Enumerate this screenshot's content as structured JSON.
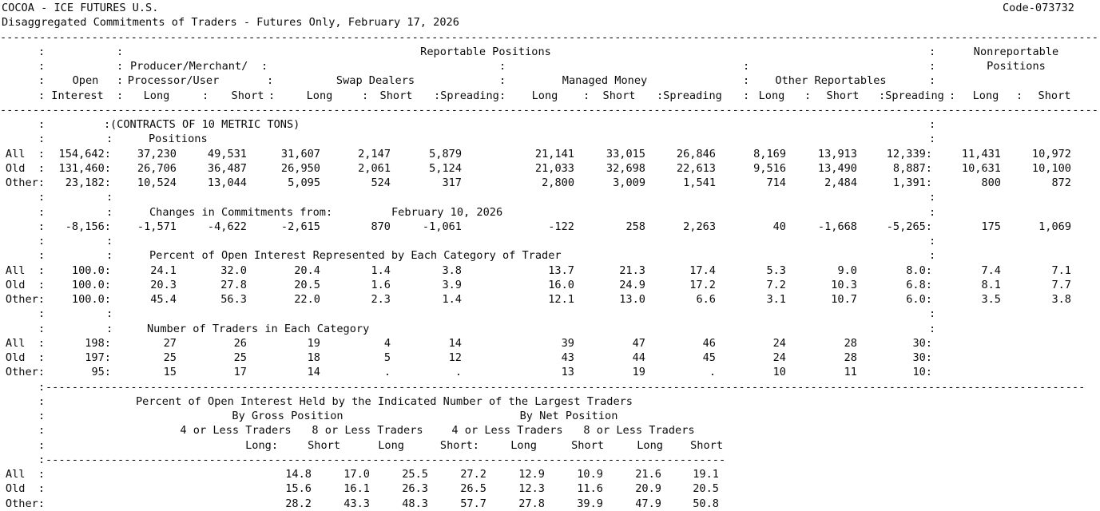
{
  "header": {
    "title": "COCOA - ICE FUTURES U.S.",
    "code": "Code-073732",
    "subtitle": "Disaggregated Commitments of Traders - Futures Only, February 17, 2026"
  },
  "labels": {
    "colon": ":",
    "long": "Long",
    "short": "Short",
    "long_colon": "Long:",
    "short_colon": "Short:",
    "spreading": ":Spreading",
    "open": "Open",
    "interest": "Interest",
    "reportable": "Reportable Positions",
    "nonreportable_1": "Nonreportable",
    "nonreportable_2": "Positions",
    "producer_merchant": "Producer/Merchant/",
    "processor_user": "Processor/User",
    "swap_dealers": "Swap Dealers",
    "managed_money": "Managed Money",
    "other_reportables": "Other Reportables"
  },
  "rules": {
    "full": "------------------------------------------------------------------------------------------------------------------------------------------------------------------------",
    "long": "---------------------------------------------------------------------------------------------------------------------------------------------------------------",
    "short": "--------------------------------------------------------------------------------------------------------"
  },
  "sections": {
    "contracts_note": "(CONTRACTS OF 10 METRIC TONS)",
    "positions": {
      "title": "Positions",
      "rows": [
        {
          "label": "All  :",
          "cells": [
            "154,642:",
            "37,230",
            "49,531",
            "31,607",
            "2,147",
            "5,879",
            "21,141",
            "33,015",
            "26,846",
            "8,169",
            "13,913",
            "12,339:",
            "11,431",
            "10,972"
          ]
        },
        {
          "label": "Old  :",
          "cells": [
            "131,460:",
            "26,706",
            "36,487",
            "26,950",
            "2,061",
            "5,124",
            "21,033",
            "32,698",
            "22,613",
            "9,516",
            "13,490",
            "8,887:",
            "10,631",
            "10,100"
          ]
        },
        {
          "label": "Other:",
          "cells": [
            "23,182:",
            "10,524",
            "13,044",
            "5,095",
            "524",
            "317",
            "2,800",
            "3,009",
            "1,541",
            "714",
            "2,484",
            "1,391:",
            "800",
            "872"
          ]
        }
      ]
    },
    "changes": {
      "title": "Changes in Commitments from:",
      "date": "February 10, 2026",
      "row": {
        "label": "     :",
        "cells": [
          "-8,156:",
          "-1,571",
          "-4,622",
          "-2,615",
          "870",
          "-1,061",
          "-122",
          "258",
          "2,263",
          "40",
          "-1,668",
          "-5,265:",
          "175",
          "1,069"
        ]
      }
    },
    "percent": {
      "title": "Percent of Open Interest Represented by Each Category of Trader",
      "rows": [
        {
          "label": "All  :",
          "cells": [
            "100.0:",
            "24.1",
            "32.0",
            "20.4",
            "1.4",
            "3.8",
            "13.7",
            "21.3",
            "17.4",
            "5.3",
            "9.0",
            "8.0:",
            "7.4",
            "7.1"
          ]
        },
        {
          "label": "Old  :",
          "cells": [
            "100.0:",
            "20.3",
            "27.8",
            "20.5",
            "1.6",
            "3.9",
            "16.0",
            "24.9",
            "17.2",
            "7.2",
            "10.3",
            "6.8:",
            "8.1",
            "7.7"
          ]
        },
        {
          "label": "Other:",
          "cells": [
            "100.0:",
            "45.4",
            "56.3",
            "22.0",
            "2.3",
            "1.4",
            "12.1",
            "13.0",
            "6.6",
            "3.1",
            "10.7",
            "6.0:",
            "3.5",
            "3.8"
          ]
        }
      ]
    },
    "traders": {
      "title": "Number of Traders in Each Category",
      "rows": [
        {
          "label": "All  :",
          "cells": [
            "198:",
            "27",
            "26",
            "19",
            "4",
            "14",
            "39",
            "47",
            "46",
            "24",
            "28",
            "30:",
            "",
            ""
          ]
        },
        {
          "label": "Old  :",
          "cells": [
            "197:",
            "25",
            "25",
            "18",
            "5",
            "12",
            "43",
            "44",
            "45",
            "24",
            "28",
            "30:",
            "",
            ""
          ]
        },
        {
          "label": "Other:",
          "cells": [
            "95:",
            "15",
            "17",
            "14",
            ".",
            ".",
            "13",
            "19",
            ".",
            "10",
            "11",
            "10:",
            "",
            ""
          ]
        }
      ]
    },
    "concentration": {
      "title": "Percent of Open Interest Held by the Indicated Number of the Largest Traders",
      "by_gross": "By Gross Position",
      "by_net": "By Net Position",
      "four_or_less": "4 or Less Traders",
      "eight_or_less": "8 or Less Traders",
      "rows": [
        {
          "label": "All  :",
          "cells": [
            "14.8",
            "17.0",
            "25.5",
            "27.2",
            "12.9",
            "10.9",
            "21.6",
            "19.1"
          ]
        },
        {
          "label": "Old  :",
          "cells": [
            "15.6",
            "16.1",
            "26.3",
            "26.5",
            "12.3",
            "11.6",
            "20.9",
            "20.5"
          ]
        },
        {
          "label": "Other:",
          "cells": [
            "28.2",
            "43.3",
            "48.3",
            "57.7",
            "27.8",
            "39.9",
            "47.9",
            "50.8"
          ]
        }
      ]
    }
  }
}
